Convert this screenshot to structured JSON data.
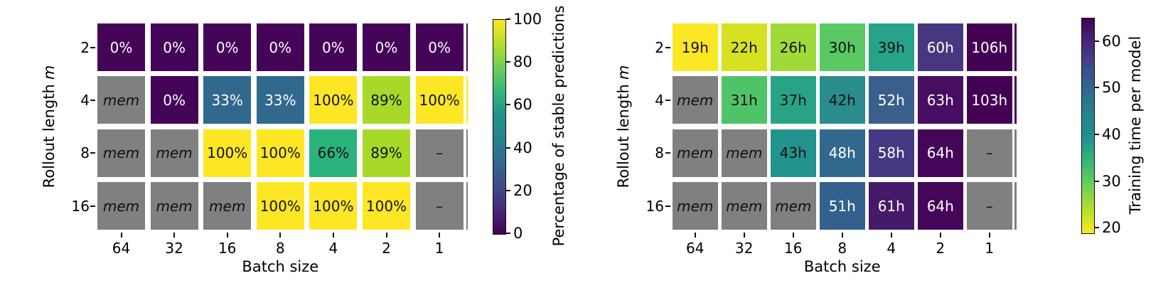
{
  "figure": {
    "background": "#ffffff"
  },
  "colors": {
    "masked_gray": "#808080",
    "viridis_stops": [
      "#440154",
      "#482878",
      "#3e4a89",
      "#31688e",
      "#26828e",
      "#21918c",
      "#35b779",
      "#6ece58",
      "#b5de2b",
      "#fde725"
    ],
    "darkest": "#440154",
    "brightest": "#fde725"
  },
  "chart_data": [
    {
      "type": "heatmap",
      "xlabel": "Batch size",
      "ylabel": "Rollout length m",
      "ylabel_prefix": "Rollout length",
      "ylabel_variable": "m",
      "x_categories": [
        "64",
        "32",
        "16",
        "8",
        "4",
        "2",
        "1"
      ],
      "batch_sizes": [
        64,
        32,
        16,
        8,
        4,
        2,
        1
      ],
      "y_categories": [
        "2",
        "4",
        "8",
        "16"
      ],
      "rollout_lengths": [
        2,
        4,
        8,
        16
      ],
      "missing_label": "mem",
      "na_label": "–",
      "colorbar": {
        "label": "Percentage of stable predictions",
        "tick_labels": [
          "100",
          "80",
          "60",
          "40",
          "20",
          "0"
        ],
        "tick_values": [
          100,
          80,
          60,
          40,
          20,
          0
        ],
        "vmin": 0,
        "vmax": 100,
        "colormap": "viridis",
        "reversed": false
      },
      "values": [
        [
          0,
          0,
          0,
          0,
          0,
          0,
          0
        ],
        [
          null,
          0,
          33,
          33,
          100,
          89,
          100
        ],
        [
          null,
          null,
          100,
          100,
          66,
          89,
          null
        ],
        [
          null,
          null,
          null,
          100,
          100,
          100,
          null
        ]
      ],
      "edge_strip_colors": [
        "#440458",
        "#fde725",
        "#808080",
        "#808080"
      ],
      "cells": [
        [
          {
            "t": "0%",
            "bg": "#440458",
            "fg": "#ffffff"
          },
          {
            "t": "0%",
            "bg": "#440458",
            "fg": "#ffffff"
          },
          {
            "t": "0%",
            "bg": "#440458",
            "fg": "#ffffff"
          },
          {
            "t": "0%",
            "bg": "#440458",
            "fg": "#ffffff"
          },
          {
            "t": "0%",
            "bg": "#440458",
            "fg": "#ffffff"
          },
          {
            "t": "0%",
            "bg": "#440458",
            "fg": "#ffffff"
          },
          {
            "t": "0%",
            "bg": "#440458",
            "fg": "#ffffff"
          }
        ],
        [
          {
            "t": "mem",
            "bg": "#808080",
            "fg": "#111111",
            "it": true
          },
          {
            "t": "0%",
            "bg": "#440458",
            "fg": "#ffffff"
          },
          {
            "t": "33%",
            "bg": "#31688e",
            "fg": "#ffffff"
          },
          {
            "t": "33%",
            "bg": "#31688e",
            "fg": "#ffffff"
          },
          {
            "t": "100%",
            "bg": "#fde725",
            "fg": "#111111"
          },
          {
            "t": "89%",
            "bg": "#a8d929",
            "fg": "#111111"
          },
          {
            "t": "100%",
            "bg": "#fde725",
            "fg": "#111111"
          }
        ],
        [
          {
            "t": "mem",
            "bg": "#808080",
            "fg": "#111111",
            "it": true
          },
          {
            "t": "mem",
            "bg": "#808080",
            "fg": "#111111",
            "it": true
          },
          {
            "t": "100%",
            "bg": "#fde725",
            "fg": "#111111"
          },
          {
            "t": "100%",
            "bg": "#fde725",
            "fg": "#111111"
          },
          {
            "t": "66%",
            "bg": "#2ab37d",
            "fg": "#111111"
          },
          {
            "t": "89%",
            "bg": "#a8d929",
            "fg": "#111111"
          },
          {
            "t": "–",
            "bg": "#808080",
            "fg": "#111111"
          }
        ],
        [
          {
            "t": "mem",
            "bg": "#808080",
            "fg": "#111111",
            "it": true
          },
          {
            "t": "mem",
            "bg": "#808080",
            "fg": "#111111",
            "it": true
          },
          {
            "t": "mem",
            "bg": "#808080",
            "fg": "#111111",
            "it": true
          },
          {
            "t": "100%",
            "bg": "#fde725",
            "fg": "#111111"
          },
          {
            "t": "100%",
            "bg": "#fde725",
            "fg": "#111111"
          },
          {
            "t": "100%",
            "bg": "#fde725",
            "fg": "#111111"
          },
          {
            "t": "–",
            "bg": "#808080",
            "fg": "#111111"
          }
        ]
      ]
    },
    {
      "type": "heatmap",
      "xlabel": "Batch size",
      "ylabel": "Rollout length m",
      "ylabel_prefix": "Rollout length",
      "ylabel_variable": "m",
      "x_categories": [
        "64",
        "32",
        "16",
        "8",
        "4",
        "2",
        "1"
      ],
      "batch_sizes": [
        64,
        32,
        16,
        8,
        4,
        2,
        1
      ],
      "y_categories": [
        "2",
        "4",
        "8",
        "16"
      ],
      "rollout_lengths": [
        2,
        4,
        8,
        16
      ],
      "missing_label": "mem",
      "na_label": "–",
      "colorbar": {
        "label": "Training time per model",
        "tick_labels": [
          "60",
          "50",
          "40",
          "30",
          "20"
        ],
        "tick_values": [
          60,
          50,
          40,
          30,
          20
        ],
        "vmin": 19,
        "vmax": 65,
        "colormap": "viridis",
        "reversed": true
      },
      "values": [
        [
          19,
          22,
          26,
          30,
          39,
          60,
          106
        ],
        [
          null,
          31,
          37,
          42,
          52,
          63,
          103
        ],
        [
          null,
          null,
          43,
          48,
          58,
          64,
          null
        ],
        [
          null,
          null,
          null,
          51,
          61,
          64,
          null
        ]
      ],
      "edge_strip_colors": [
        "#440254",
        "#440254",
        "#808080",
        "#808080"
      ],
      "cells": [
        [
          {
            "t": "19h",
            "bg": "#fce724",
            "fg": "#111111"
          },
          {
            "t": "22h",
            "bg": "#d6e121",
            "fg": "#111111"
          },
          {
            "t": "26h",
            "bg": "#a0da39",
            "fg": "#111111"
          },
          {
            "t": "30h",
            "bg": "#5ac863",
            "fg": "#111111"
          },
          {
            "t": "39h",
            "bg": "#27a38a",
            "fg": "#111111"
          },
          {
            "t": "60h",
            "bg": "#46377e",
            "fg": "#ffffff"
          },
          {
            "t": "106h",
            "bg": "#440254",
            "fg": "#ffffff"
          }
        ],
        [
          {
            "t": "mem",
            "bg": "#808080",
            "fg": "#111111",
            "it": true
          },
          {
            "t": "31h",
            "bg": "#4fc368",
            "fg": "#111111"
          },
          {
            "t": "37h",
            "bg": "#29a386",
            "fg": "#111111"
          },
          {
            "t": "42h",
            "bg": "#2a8c8d",
            "fg": "#111111"
          },
          {
            "t": "52h",
            "bg": "#3b5f8c",
            "fg": "#ffffff"
          },
          {
            "t": "63h",
            "bg": "#470d60",
            "fg": "#ffffff"
          },
          {
            "t": "103h",
            "bg": "#440254",
            "fg": "#ffffff"
          }
        ],
        [
          {
            "t": "mem",
            "bg": "#808080",
            "fg": "#111111",
            "it": true
          },
          {
            "t": "mem",
            "bg": "#808080",
            "fg": "#111111",
            "it": true
          },
          {
            "t": "43h",
            "bg": "#22948d",
            "fg": "#111111"
          },
          {
            "t": "48h",
            "bg": "#31688e",
            "fg": "#ffffff"
          },
          {
            "t": "58h",
            "bg": "#443983",
            "fg": "#ffffff"
          },
          {
            "t": "64h",
            "bg": "#450559",
            "fg": "#ffffff"
          },
          {
            "t": "–",
            "bg": "#808080",
            "fg": "#111111"
          }
        ],
        [
          {
            "t": "mem",
            "bg": "#808080",
            "fg": "#111111",
            "it": true
          },
          {
            "t": "mem",
            "bg": "#808080",
            "fg": "#111111",
            "it": true
          },
          {
            "t": "mem",
            "bg": "#808080",
            "fg": "#111111",
            "it": true
          },
          {
            "t": "51h",
            "bg": "#33618d",
            "fg": "#ffffff"
          },
          {
            "t": "61h",
            "bg": "#461a6b",
            "fg": "#ffffff"
          },
          {
            "t": "64h",
            "bg": "#450559",
            "fg": "#ffffff"
          },
          {
            "t": "–",
            "bg": "#808080",
            "fg": "#111111"
          }
        ]
      ]
    }
  ]
}
